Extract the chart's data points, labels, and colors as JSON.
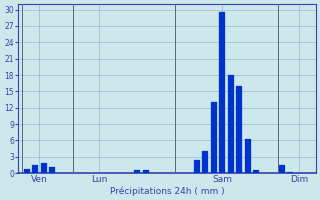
{
  "xlabel": "Précipitations 24h ( mm )",
  "background_color": "#cde8ec",
  "bar_color": "#0033cc",
  "grid_color": "#99bbcc",
  "text_color": "#3344aa",
  "ylim": [
    0,
    31
  ],
  "yticks": [
    0,
    3,
    6,
    9,
    12,
    15,
    18,
    21,
    24,
    27,
    30
  ],
  "bar_positions": [
    1,
    2,
    3,
    4,
    14,
    15,
    21,
    22,
    23,
    24,
    25,
    26,
    27,
    28,
    31,
    32
  ],
  "bar_values": [
    0.8,
    1.5,
    1.8,
    1.2,
    0.5,
    0.5,
    2.5,
    4.0,
    13.0,
    29.5,
    18.0,
    16.0,
    6.2,
    0.5,
    1.5,
    0.3
  ],
  "xlim": [
    0,
    35
  ],
  "xtick_positions": [
    2.5,
    9.5,
    24,
    33
  ],
  "xtick_labels": [
    "Ven",
    "Lun",
    "Sam",
    "Dim"
  ],
  "vline_positions": [
    0.5,
    6.5,
    18.5,
    30.5
  ]
}
